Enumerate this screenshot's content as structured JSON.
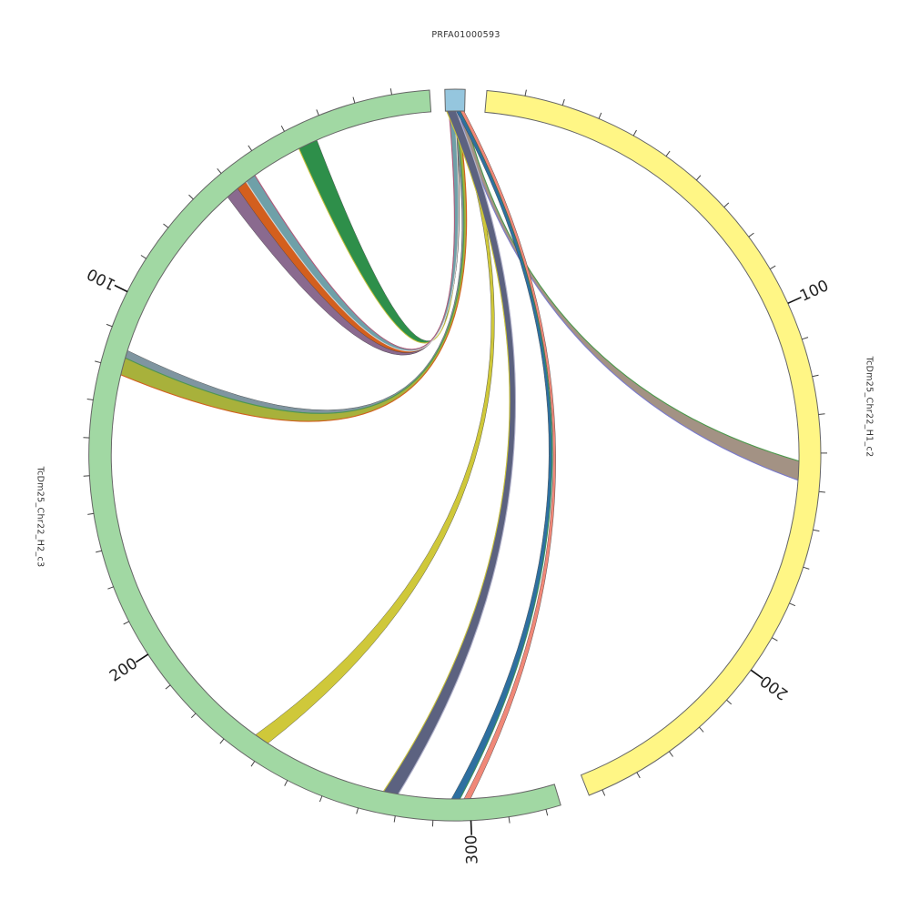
{
  "diagram": {
    "type": "circos",
    "segments": [
      {
        "id": "prfa",
        "label": "PRFA01000593",
        "color": "#95c6de",
        "tick_labels": []
      },
      {
        "id": "h1",
        "label": "TcDm25_Chr22_H1_c2",
        "color": "#fff685",
        "tick_labels": [
          "100",
          "200"
        ]
      },
      {
        "id": "h2",
        "label": "TcDm25_Chr22_H2_c3",
        "color": "#a1d8a3",
        "tick_labels": [
          "100",
          "200",
          "300"
        ]
      }
    ],
    "links": [
      {
        "source": "prfa",
        "target": "h1",
        "color": "#a39284",
        "edge_colors": [
          "#4c9a4c",
          "#7a7acc"
        ]
      },
      {
        "source": "prfa",
        "target": "h2",
        "color": "#a8b13b",
        "edge_colors": [
          "#d35f1e",
          "#c47a9a"
        ]
      },
      {
        "source": "prfa",
        "target": "h2",
        "color": "#7f95a0",
        "edge_colors": [
          "#4c9a4c"
        ]
      },
      {
        "source": "prfa",
        "target": "h2",
        "color": "#2e8f4a",
        "edge_colors": [
          "#c9c23a"
        ]
      },
      {
        "source": "prfa",
        "target": "h2",
        "color": "#8a6a8f",
        "edge_colors": []
      },
      {
        "source": "prfa",
        "target": "h2",
        "color": "#d35f1e",
        "edge_colors": []
      },
      {
        "source": "prfa",
        "target": "h2",
        "color": "#6fa0a8",
        "edge_colors": [
          "#d9d9d9",
          "#b05a7a"
        ]
      },
      {
        "source": "prfa",
        "target": "h2",
        "color": "#cfc83a",
        "edge_colors": []
      },
      {
        "source": "prfa",
        "target": "h2",
        "color": "#5c6280",
        "edge_colors": [
          "#b3b3cc",
          "#c9c23a"
        ]
      },
      {
        "source": "prfa",
        "target": "h2",
        "color": "#2e6fa0",
        "edge_colors": [
          "#3a8f5a"
        ]
      },
      {
        "source": "prfa",
        "target": "h2",
        "color": "#f08878",
        "edge_colors": []
      }
    ]
  }
}
